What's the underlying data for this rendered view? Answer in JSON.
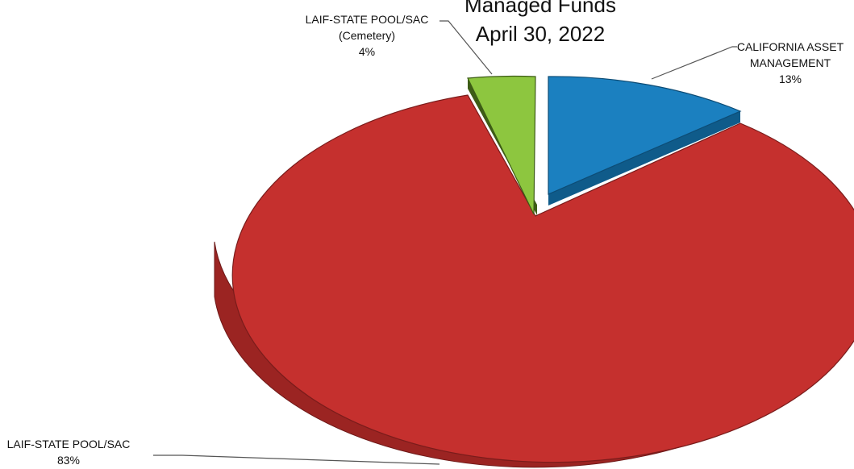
{
  "chart_data": {
    "type": "pie",
    "title_lines": [
      "Managed Funds",
      "April 30, 2022"
    ],
    "slices": [
      {
        "label_lines": [
          "CALIFORNIA ASSET",
          "MANAGEMENT"
        ],
        "pct_label": "13%",
        "value": 13,
        "color": "#1a7fbf",
        "side_color": "#14618f"
      },
      {
        "label_lines": [
          "LAIF-STATE POOL/SAC"
        ],
        "pct_label": "83%",
        "value": 83,
        "color": "#c4302e",
        "side_color": "#9e2624"
      },
      {
        "label_lines": [
          "LAIF-STATE POOL/SAC",
          "(Cemetery)"
        ],
        "pct_label": "4%",
        "value": 4,
        "color": "#8cc43c",
        "side_color": "#5e8a24"
      }
    ]
  }
}
